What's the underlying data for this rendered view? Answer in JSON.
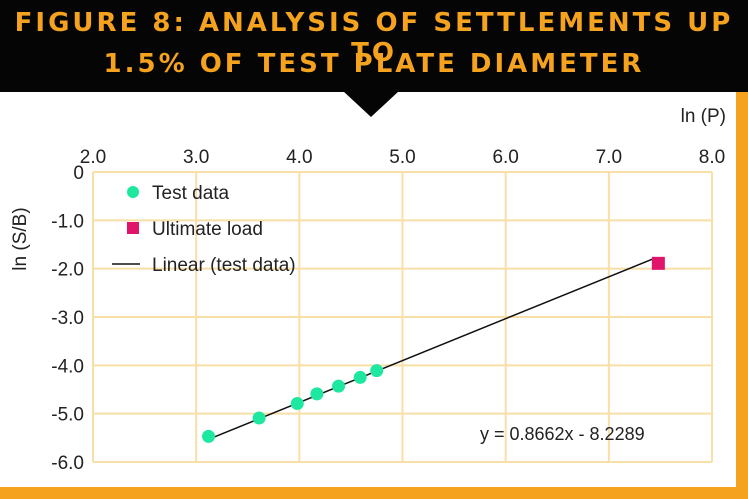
{
  "title_lines": [
    "FIGURE 8: ANALYSIS OF SETTLEMENTS UP TO",
    "1.5% OF TEST PLATE DIAMETER"
  ],
  "colors": {
    "accent": "#f5a21e",
    "banner": "#050505",
    "test_data": "#1ee8a0",
    "ultimate": "#e0146a",
    "grid": "#f8dfa6",
    "line": "#111111"
  },
  "chart_data": {
    "type": "scatter",
    "title": "FIGURE 8: ANALYSIS OF SETTLEMENTS UP TO 1.5% OF TEST PLATE DIAMETER",
    "xlabel": "ln (P)",
    "ylabel": "ln (S/B)",
    "xlim": [
      2.0,
      8.0
    ],
    "ylim": [
      -6.0,
      0
    ],
    "x_axis_position": "top",
    "grid": true,
    "legend_position": "top-left",
    "x_ticks": [
      "2.0",
      "3.0",
      "4.0",
      "5.0",
      "6.0",
      "7.0",
      "8.0"
    ],
    "x_tick_values": [
      2,
      3,
      4,
      5,
      6,
      7,
      8
    ],
    "y_ticks": [
      "0",
      "-1.0",
      "-2.0",
      "-3.0",
      "-4.0",
      "-5.0",
      "-6.0"
    ],
    "y_tick_values": [
      0,
      -1,
      -2,
      -3,
      -4,
      -5,
      -6
    ],
    "series": [
      {
        "name": "Test data",
        "kind": "scatter",
        "marker": "circle",
        "x": [
          3.12,
          3.61,
          3.98,
          4.17,
          4.38,
          4.59,
          4.75
        ],
        "y": [
          -5.47,
          -5.09,
          -4.79,
          -4.59,
          -4.43,
          -4.25,
          -4.11
        ]
      },
      {
        "name": "Ultimate load",
        "kind": "scatter",
        "marker": "square",
        "x": [
          7.48
        ],
        "y": [
          -1.89
        ]
      },
      {
        "name": "Linear (test data)",
        "kind": "line",
        "x": [
          3.12,
          7.46
        ],
        "y": [
          -5.53,
          -1.77
        ]
      }
    ],
    "annotations": [
      {
        "text": "y = 0.8662x - 8.2289",
        "x": 6.2,
        "y": -5.5
      }
    ]
  }
}
